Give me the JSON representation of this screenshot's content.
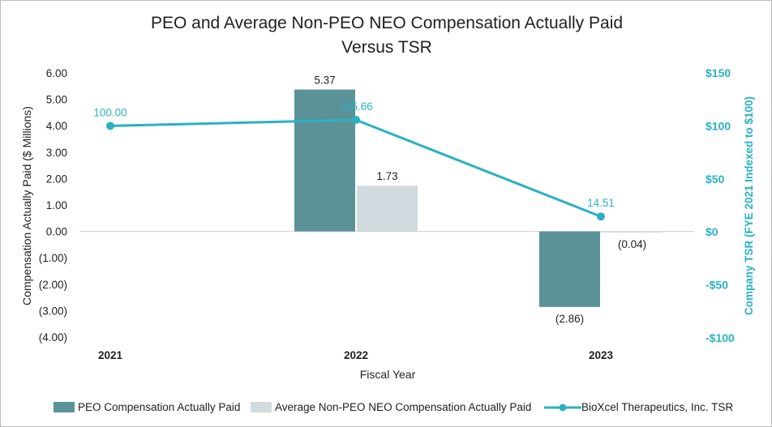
{
  "chart_data": {
    "type": "bar",
    "title": "PEO and Average Non-PEO NEO Compensation Actually Paid Versus TSR",
    "title_lines": [
      "PEO and Average Non-PEO NEO Compensation Actually Paid",
      "Versus TSR"
    ],
    "xlabel": "Fiscal Year",
    "ylabel": "Compensation Actually Paid ($ Millions)",
    "y2label": "Company TSR (FYE 2021 Indexed to $100)",
    "categories": [
      "2021",
      "2022",
      "2023"
    ],
    "ylim": [
      -4,
      6
    ],
    "yticks": [
      6,
      5,
      4,
      3,
      2,
      1,
      0,
      -1,
      -2,
      -3,
      -4
    ],
    "ytick_labels": [
      "6.00",
      "5.00",
      "4.00",
      "3.00",
      "2.00",
      "1.00",
      "0.00",
      "(1.00)",
      "(2.00)",
      "(3.00)",
      "(4.00)"
    ],
    "y2lim": [
      -100,
      150
    ],
    "y2ticks": [
      150,
      100,
      50,
      0,
      -50,
      -100
    ],
    "y2tick_labels": [
      "$150",
      "$100",
      "$50",
      "$0",
      "-$50",
      "-$100"
    ],
    "series": [
      {
        "name": "PEO Compensation Actually Paid",
        "kind": "bar",
        "axis": "left",
        "color": "#5a9298",
        "values": [
          null,
          5.37,
          -2.86
        ],
        "labels": [
          "",
          "5.37",
          "(2.86)"
        ]
      },
      {
        "name": "Average Non-PEO NEO Compensation Actually Paid",
        "kind": "bar",
        "axis": "left",
        "color": "#d1dbdf",
        "values": [
          null,
          1.73,
          -0.04
        ],
        "labels": [
          "",
          "1.73",
          "(0.04)"
        ]
      },
      {
        "name": "BioXcel Therapeutics, Inc. TSR",
        "kind": "line",
        "axis": "right",
        "color": "#2ab1c3",
        "values": [
          100.0,
          105.66,
          14.51
        ],
        "labels": [
          "100.00",
          "105.66",
          "14.51"
        ]
      }
    ],
    "legend_position": "bottom"
  }
}
